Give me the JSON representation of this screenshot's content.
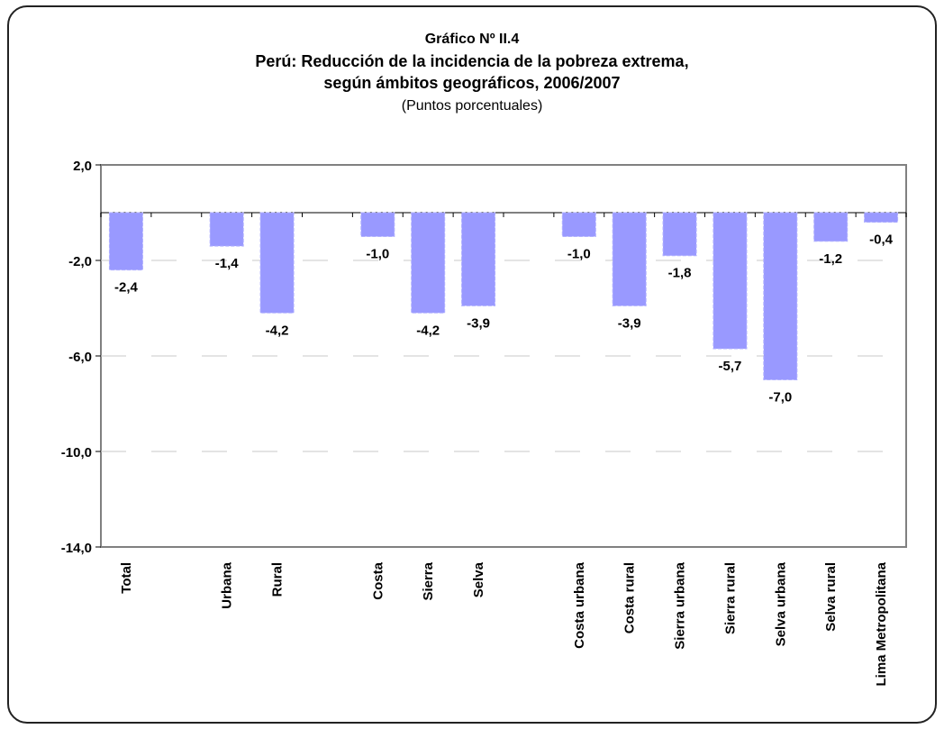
{
  "chart_data": {
    "type": "bar",
    "title": "Gráfico Nº II.4",
    "subtitle": "Perú: Reducción de la incidencia de la pobreza extrema,",
    "subtitle2": "según ámbitos geográficos, 2006/2007",
    "units": "(Puntos porcentuales)",
    "xlabel": "",
    "ylabel": "",
    "ylim": [
      -14.0,
      2.0
    ],
    "yticks": [
      2.0,
      -2.0,
      -6.0,
      -10.0,
      -14.0
    ],
    "ytick_labels": [
      "2,0",
      "-2,0",
      "-6,0",
      "-10,0",
      "-14,0"
    ],
    "grid": true,
    "legend": "none",
    "bar_color": "#9999ff",
    "categories": [
      "Total",
      "Urbana",
      "Rural",
      "Costa",
      "Sierra",
      "Selva",
      "Costa urbana",
      "Costa rural",
      "Sierra urbana",
      "Sierra rural",
      "Selva urbana",
      "Selva rural",
      "Lima Metropolitana"
    ],
    "slots": [
      0,
      2,
      3,
      5,
      6,
      7,
      9,
      10,
      11,
      12,
      13,
      14,
      15
    ],
    "values": [
      -2.4,
      -1.4,
      -4.2,
      -1.0,
      -4.2,
      -3.9,
      -1.0,
      -3.9,
      -1.8,
      -5.7,
      -7.0,
      -1.2,
      -0.4
    ],
    "value_labels": [
      "-2,4",
      "-1,4",
      "-4,2",
      "-1,0",
      "-4,2",
      "-3,9",
      "-1,0",
      "-3,9",
      "-1,8",
      "-5,7",
      "-7,0",
      "-1,2",
      "-0,4"
    ]
  }
}
